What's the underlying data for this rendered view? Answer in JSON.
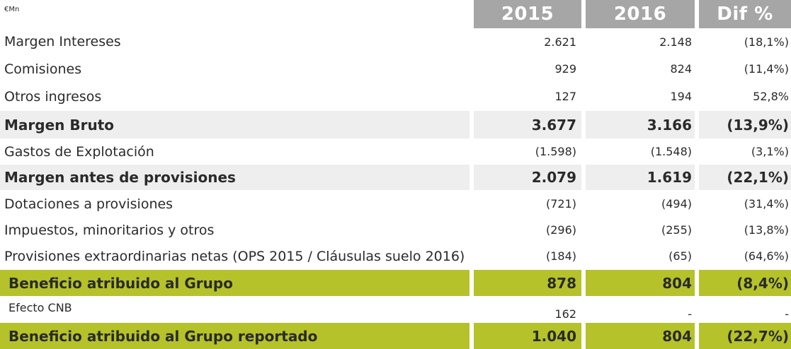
{
  "header": {
    "currency": "€Mn",
    "col_2015": "2015",
    "col_2016": "2016",
    "col_dif": "Dif %"
  },
  "rows": [
    {
      "label": "Margen Intereses",
      "v2015": "2.621",
      "v2016": "2.148",
      "dif": "(18,1%)"
    },
    {
      "label": "Comisiones",
      "v2015": "929",
      "v2016": "824",
      "dif": "(11,4%)"
    },
    {
      "label": "Otros ingresos",
      "v2015": "127",
      "v2016": "194",
      "dif": "52,8%"
    },
    {
      "label": "Margen Bruto",
      "v2015": "3.677",
      "v2016": "3.166",
      "dif": "(13,9%)"
    },
    {
      "label": "Gastos de Explotación",
      "v2015": "(1.598)",
      "v2016": "(1.548)",
      "dif": "(3,1%)"
    },
    {
      "label": "Margen antes de provisiones",
      "v2015": "2.079",
      "v2016": "1.619",
      "dif": "(22,1%)"
    },
    {
      "label": "Dotaciones a provisiones",
      "v2015": "(721)",
      "v2016": "(494)",
      "dif": "(31,4%)"
    },
    {
      "label": "Impuestos, minoritarios y otros",
      "v2015": "(296)",
      "v2016": "(255)",
      "dif": "(13,8%)"
    },
    {
      "label": "Provisiones extraordinarias netas (OPS 2015 / Cláusulas suelo 2016)",
      "v2015": "(184)",
      "v2016": "(65)",
      "dif": "(64,6%)"
    },
    {
      "label": "Beneficio atribuido al Grupo",
      "v2015": "878",
      "v2016": "804",
      "dif": "(8,4%)"
    },
    {
      "label": "Efecto CNB",
      "v2015": "162",
      "v2016": "-",
      "dif": "-"
    },
    {
      "label": "Beneficio atribuido al Grupo reportado",
      "v2015": "1.040",
      "v2016": "804",
      "dif": "(22,7%)"
    }
  ],
  "colors": {
    "header_bg": "#a6a6a6",
    "subtotal_bg": "#eeeeee",
    "highlight_bg": "#b5c22a"
  }
}
